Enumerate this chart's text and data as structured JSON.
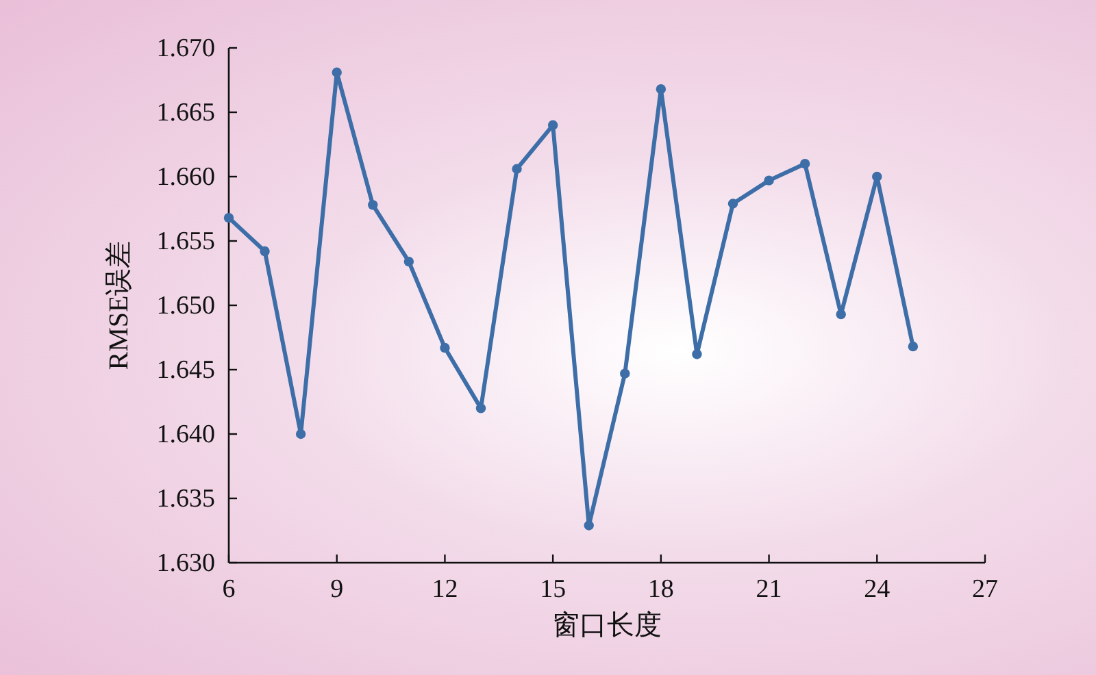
{
  "chart_data": {
    "type": "line",
    "xlabel": "窗口长度",
    "ylabel": "RMSE误差",
    "x": [
      6,
      7,
      8,
      9,
      10,
      11,
      12,
      13,
      14,
      15,
      16,
      17,
      18,
      19,
      20,
      21,
      22,
      23,
      24,
      25
    ],
    "series": [
      {
        "color": "#3d6ea8",
        "values": [
          1.6568,
          1.6542,
          1.64,
          1.6681,
          1.6578,
          1.6534,
          1.6467,
          1.642,
          1.6606,
          1.664,
          1.6329,
          1.6447,
          1.6668,
          1.6462,
          1.6579,
          1.6597,
          1.661,
          1.6493,
          1.66,
          1.6468
        ]
      }
    ],
    "xlim": [
      6,
      27
    ],
    "xticks": [
      6,
      9,
      12,
      15,
      18,
      21,
      24,
      27
    ],
    "ylim": [
      1.63,
      1.67
    ],
    "yticks": [
      {
        "value": 1.63,
        "label": "1.630"
      },
      {
        "value": 1.635,
        "label": "1.635"
      },
      {
        "value": 1.64,
        "label": "1.640"
      },
      {
        "value": 1.645,
        "label": "1.645"
      },
      {
        "value": 1.65,
        "label": "1.650"
      },
      {
        "value": 1.655,
        "label": "1.655"
      },
      {
        "value": 1.66,
        "label": "1.660"
      },
      {
        "value": 1.665,
        "label": "1.665"
      },
      {
        "value": 1.67,
        "label": "1.670"
      }
    ],
    "marker": "circle",
    "line_style": "solid"
  }
}
